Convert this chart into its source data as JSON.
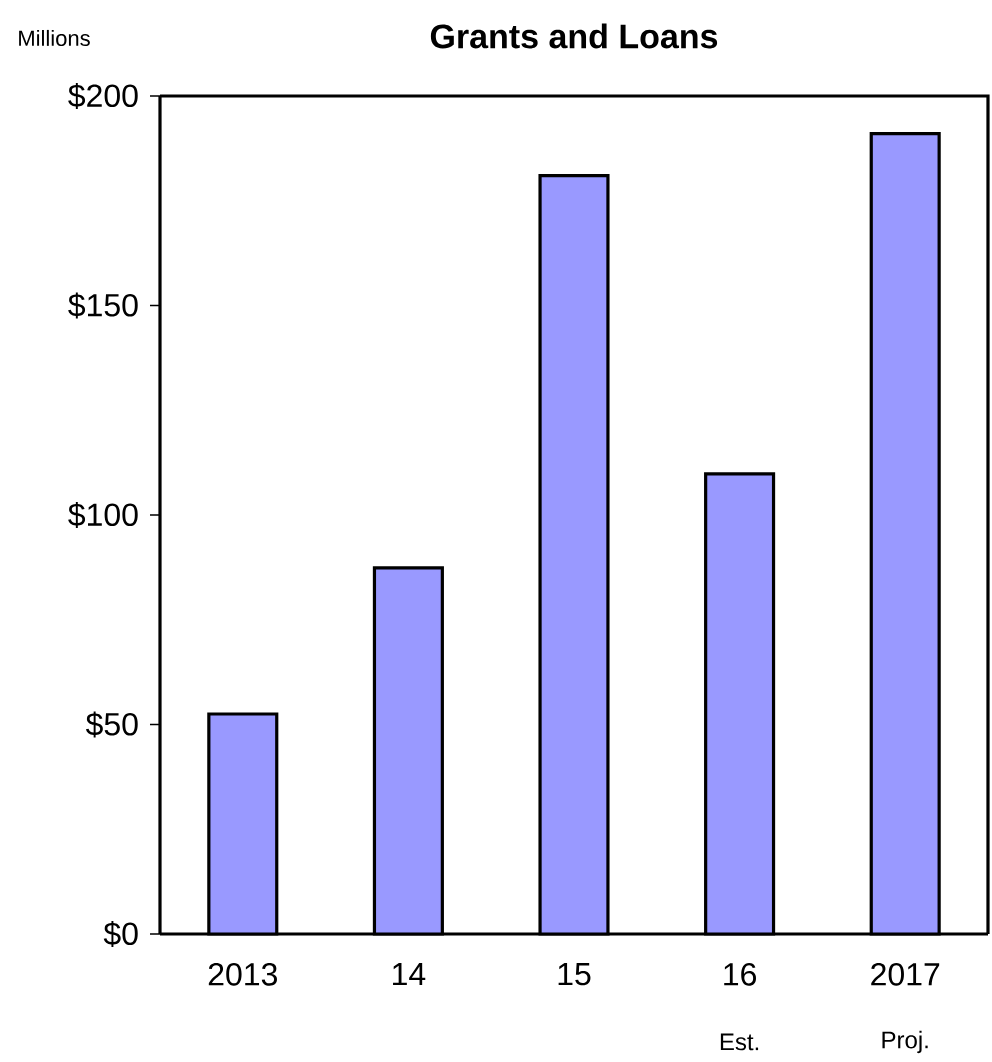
{
  "chart_data": {
    "type": "bar",
    "title": "Grants and Loans",
    "ylabel": "Millions",
    "categories": [
      "2013",
      "14",
      "15",
      "16",
      "2017"
    ],
    "values": [
      52.5,
      87.4,
      181,
      109.8,
      191
    ],
    "color": "#9999ff",
    "ylim": [
      0,
      200
    ],
    "yticks": [
      {
        "value": 0,
        "label": "$0"
      },
      {
        "value": 50,
        "label": "$50"
      },
      {
        "value": 100,
        "label": "$100"
      },
      {
        "value": 150,
        "label": "$150"
      },
      {
        "value": 200,
        "label": "$200"
      }
    ],
    "annotations": [
      "Est.",
      "Proj."
    ],
    "grid": false
  }
}
